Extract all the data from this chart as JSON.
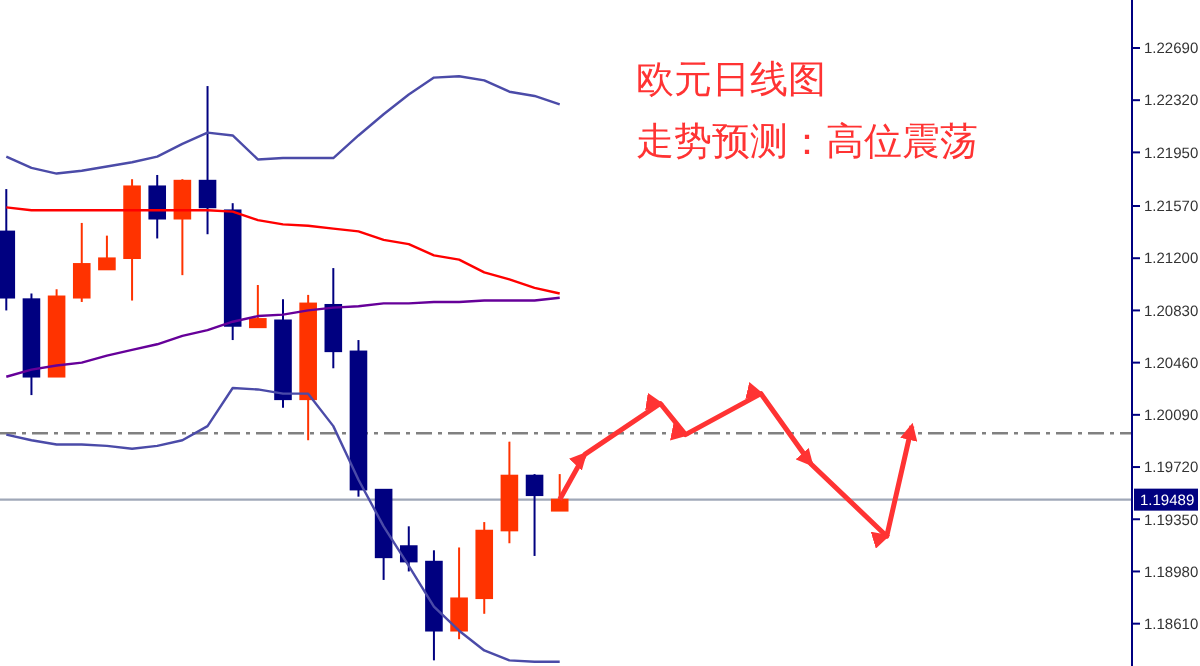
{
  "chart_data": {
    "type": "candlestick",
    "title": "欧元日线图",
    "subtitle": "走势预测：高位震荡",
    "categories": [
      null,
      null,
      null,
      null,
      null,
      null,
      null,
      null,
      null,
      null,
      null,
      null,
      null,
      null,
      null,
      null,
      null,
      null,
      null,
      null,
      null,
      null,
      null,
      null,
      null,
      null,
      null,
      null,
      null,
      null,
      null,
      null,
      null,
      null,
      null,
      null,
      null,
      null,
      null,
      null,
      null,
      null,
      null,
      null,
      null
    ],
    "ohlc": [
      [
        1.2139,
        1.2169,
        1.2083,
        1.2092
      ],
      [
        1.2091,
        1.2095,
        1.2023,
        1.2036
      ],
      [
        1.2036,
        1.2098,
        1.2036,
        1.2093
      ],
      [
        1.2092,
        1.2145,
        1.2089,
        1.2116
      ],
      [
        1.2112,
        1.2136,
        1.2112,
        1.212
      ],
      [
        1.212,
        1.2176,
        1.209,
        1.2171
      ],
      [
        1.2171,
        1.2179,
        1.2134,
        1.2148
      ],
      [
        1.2148,
        1.2176,
        1.2108,
        1.2175
      ],
      [
        1.2175,
        1.2242,
        1.2137,
        1.2156
      ],
      [
        1.2154,
        1.2159,
        1.2062,
        1.2072
      ],
      [
        1.2071,
        1.2101,
        1.2071,
        1.2077
      ],
      [
        1.2076,
        1.2091,
        1.2014,
        1.202
      ],
      [
        1.202,
        1.2094,
        1.1991,
        1.2088
      ],
      [
        1.2087,
        1.2113,
        1.2042,
        1.2054
      ],
      [
        1.2054,
        1.2062,
        1.1951,
        1.1956
      ],
      [
        1.1956,
        1.1956,
        1.1892,
        1.1908
      ],
      [
        1.1916,
        1.193,
        1.1898,
        1.1905
      ],
      [
        1.1905,
        1.1913,
        1.1835,
        1.1856
      ],
      [
        1.1856,
        1.1915,
        1.185,
        1.1879
      ],
      [
        1.1879,
        1.1933,
        1.1868,
        1.1927
      ],
      [
        1.1927,
        1.199,
        1.1918,
        1.1966
      ],
      [
        1.1966,
        1.1967,
        1.1909,
        1.1952
      ],
      [
        1.1941,
        1.1967,
        1.1941,
        1.1949
      ],
      null,
      null,
      null,
      null,
      null,
      null,
      null,
      null,
      null,
      null,
      null,
      null,
      null,
      null,
      null,
      null,
      null,
      null,
      null,
      null,
      null,
      null
    ],
    "colors": [
      "#000080",
      "#000080",
      "#ff3300",
      "#ff3300",
      "#ff3300",
      "#ff3300",
      "#000080",
      "#ff3300",
      "#000080",
      "#000080",
      "#ff3300",
      "#000080",
      "#ff3300",
      "#000080",
      "#000080",
      "#000080",
      "#000080",
      "#000080",
      "#ff3300",
      "#ff3300",
      "#ff3300",
      "#000080",
      "#ff3300",
      null,
      null,
      null,
      null,
      null,
      null,
      null,
      null,
      null,
      null,
      null,
      null,
      null,
      null,
      null,
      null,
      null,
      null,
      null,
      null,
      null,
      null
    ],
    "series": [
      {
        "type": "line",
        "color": "#4b4ba8",
        "values": [
          1.2192,
          1.2184,
          1.218,
          1.2182,
          1.2185,
          1.2188,
          1.2192,
          1.2201,
          1.2209,
          1.2207,
          1.219,
          1.2191,
          1.2191,
          1.2191,
          1.2207,
          1.2222,
          1.2236,
          1.2248,
          1.2249,
          1.2246,
          1.2238,
          1.2235,
          1.2229,
          null,
          null,
          null,
          null,
          null,
          null,
          null,
          null,
          null,
          null,
          null,
          null,
          null,
          null,
          null,
          null,
          null,
          null,
          null,
          null,
          null,
          null
        ]
      },
      {
        "type": "line",
        "color": "#ff0000",
        "values": [
          1.2156,
          1.2154,
          1.2154,
          1.2154,
          1.2154,
          1.2154,
          1.2154,
          1.2154,
          1.2154,
          1.2153,
          1.2147,
          1.2144,
          1.2143,
          1.2141,
          1.2139,
          1.2133,
          1.213,
          1.2122,
          1.2119,
          1.211,
          1.2105,
          1.2099,
          1.2095,
          null,
          null,
          null,
          null,
          null,
          null,
          null,
          null,
          null,
          null,
          null,
          null,
          null,
          null,
          null,
          null,
          null,
          null,
          null,
          null,
          null,
          null
        ]
      },
      {
        "type": "line",
        "color": "#660099",
        "values": [
          1.2036,
          1.2041,
          1.2044,
          1.2046,
          1.2051,
          1.2055,
          1.2059,
          1.2065,
          1.2069,
          1.2075,
          1.2079,
          1.208,
          1.2083,
          1.2085,
          1.2086,
          1.2088,
          1.2088,
          1.2089,
          1.2089,
          1.209,
          1.209,
          1.209,
          1.2092,
          null,
          null,
          null,
          null,
          null,
          null,
          null,
          null,
          null,
          null,
          null,
          null,
          null,
          null,
          null,
          null,
          null,
          null,
          null,
          null,
          null,
          null
        ]
      },
      {
        "type": "line",
        "color": "#4b4ba8",
        "values": [
          1.1995,
          1.1991,
          1.1988,
          1.1988,
          1.1987,
          1.1985,
          1.1987,
          1.1991,
          1.2001,
          1.2028,
          1.2027,
          1.2024,
          1.2024,
          1.2001,
          1.1963,
          1.193,
          1.1902,
          1.1873,
          1.1856,
          1.1842,
          1.1835,
          1.1834,
          1.1834,
          null,
          null,
          null,
          null,
          null,
          null,
          null,
          null,
          null,
          null,
          null,
          null,
          null,
          null,
          null,
          null,
          null,
          null,
          null,
          null,
          null,
          null
        ]
      },
      {
        "type": "line",
        "color": "#ff3333",
        "values": [
          null,
          null,
          null,
          null,
          null,
          null,
          null,
          null,
          null,
          null,
          null,
          null,
          null,
          null,
          null,
          null,
          null,
          null,
          null,
          null,
          null,
          null,
          1.1949,
          1.1981,
          null,
          null,
          1.2017,
          1.1995,
          null,
          null,
          1.2024,
          null,
          1.1974,
          null,
          null,
          1.1923,
          1.2001,
          null,
          null,
          null,
          null,
          null,
          null,
          null,
          null
        ]
      }
    ],
    "ref_lines": [
      {
        "axis": "y",
        "value": 1.1996,
        "color": "#808080",
        "line_style": "dashed"
      },
      {
        "axis": "y",
        "value": 1.19489,
        "label": "1.19489",
        "color": "#a0a8b8",
        "line_style": "solid"
      }
    ],
    "ylim": [
      1.1831,
      1.2303
    ],
    "yticks": [
      {
        "value": 1.1861,
        "label": "1.18610"
      },
      {
        "value": 1.1898,
        "label": "1.18980"
      },
      {
        "value": 1.1935,
        "label": "1.19350"
      },
      {
        "value": 1.1972,
        "label": "1.19720"
      },
      {
        "value": 1.2009,
        "label": "1.20090"
      },
      {
        "value": 1.2046,
        "label": "1.20460"
      },
      {
        "value": 1.2083,
        "label": "1.20830"
      },
      {
        "value": 1.212,
        "label": "1.21200"
      },
      {
        "value": 1.2157,
        "label": "1.21570"
      },
      {
        "value": 1.2195,
        "label": "1.21950"
      },
      {
        "value": 1.2232,
        "label": "1.22320"
      },
      {
        "value": 1.2269,
        "label": "1.22690"
      }
    ],
    "grid": false
  }
}
